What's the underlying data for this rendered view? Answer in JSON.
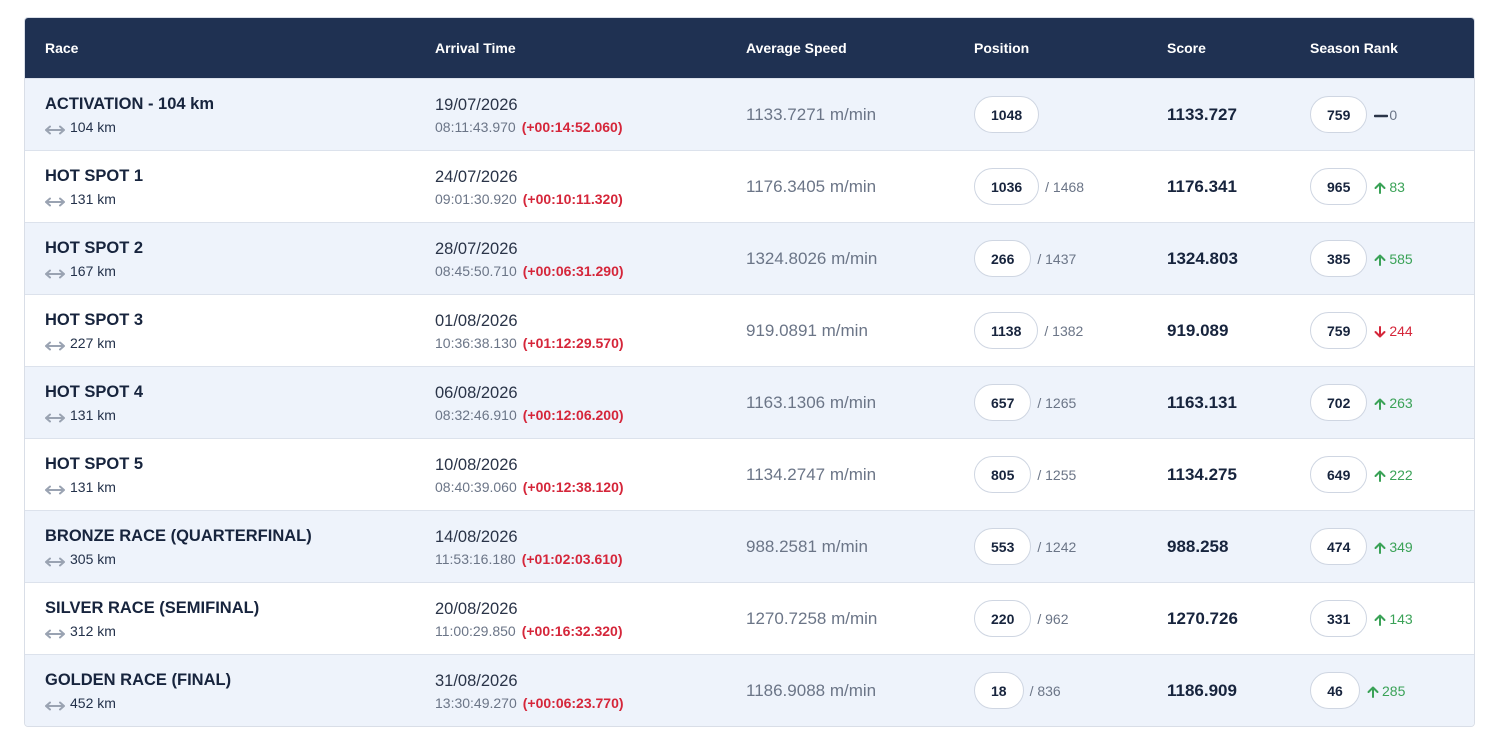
{
  "columns": {
    "race": "Race",
    "arrival": "Arrival Time",
    "speed": "Average Speed",
    "position": "Position",
    "score": "Score",
    "rank": "Season Rank"
  },
  "rows": [
    {
      "name": "ACTIVATION - 104 km",
      "distance": "104 km",
      "date": "19/07/2026",
      "time": "08:11:43.970",
      "delta": "(+00:14:52.060)",
      "speed": "1133.7271 m/min",
      "position": "1048",
      "position_total": "",
      "score": "1133.727",
      "rank": "759",
      "rank_change": "0",
      "rank_dir": "same",
      "icon": "dash-icon"
    },
    {
      "name": "HOT SPOT 1",
      "distance": "131 km",
      "date": "24/07/2026",
      "time": "09:01:30.920",
      "delta": "(+00:10:11.320)",
      "speed": "1176.3405 m/min",
      "position": "1036",
      "position_total": "/ 1468",
      "score": "1176.341",
      "rank": "965",
      "rank_change": "83",
      "rank_dir": "up",
      "icon": "arrow-up-icon"
    },
    {
      "name": "HOT SPOT 2",
      "distance": "167 km",
      "date": "28/07/2026",
      "time": "08:45:50.710",
      "delta": "(+00:06:31.290)",
      "speed": "1324.8026 m/min",
      "position": "266",
      "position_total": "/ 1437",
      "score": "1324.803",
      "rank": "385",
      "rank_change": "585",
      "rank_dir": "up",
      "icon": "arrow-up-icon"
    },
    {
      "name": "HOT SPOT 3",
      "distance": "227 km",
      "date": "01/08/2026",
      "time": "10:36:38.130",
      "delta": "(+01:12:29.570)",
      "speed": "919.0891 m/min",
      "position": "1138",
      "position_total": "/ 1382",
      "score": "919.089",
      "rank": "759",
      "rank_change": "244",
      "rank_dir": "down",
      "icon": "arrow-down-icon"
    },
    {
      "name": "HOT SPOT 4",
      "distance": "131 km",
      "date": "06/08/2026",
      "time": "08:32:46.910",
      "delta": "(+00:12:06.200)",
      "speed": "1163.1306 m/min",
      "position": "657",
      "position_total": "/ 1265",
      "score": "1163.131",
      "rank": "702",
      "rank_change": "263",
      "rank_dir": "up",
      "icon": "arrow-up-icon"
    },
    {
      "name": "HOT SPOT 5",
      "distance": "131 km",
      "date": "10/08/2026",
      "time": "08:40:39.060",
      "delta": "(+00:12:38.120)",
      "speed": "1134.2747 m/min",
      "position": "805",
      "position_total": "/ 1255",
      "score": "1134.275",
      "rank": "649",
      "rank_change": "222",
      "rank_dir": "up",
      "icon": "arrow-up-icon"
    },
    {
      "name": "BRONZE RACE (QUARTERFINAL)",
      "distance": "305 km",
      "date": "14/08/2026",
      "time": "11:53:16.180",
      "delta": "(+01:02:03.610)",
      "speed": "988.2581 m/min",
      "position": "553",
      "position_total": "/ 1242",
      "score": "988.258",
      "rank": "474",
      "rank_change": "349",
      "rank_dir": "up",
      "icon": "arrow-up-icon"
    },
    {
      "name": "SILVER RACE (SEMIFINAL)",
      "distance": "312 km",
      "date": "20/08/2026",
      "time": "11:00:29.850",
      "delta": "(+00:16:32.320)",
      "speed": "1270.7258 m/min",
      "position": "220",
      "position_total": "/ 962",
      "score": "1270.726",
      "rank": "331",
      "rank_change": "143",
      "rank_dir": "up",
      "icon": "arrow-up-icon"
    },
    {
      "name": "GOLDEN RACE (FINAL)",
      "distance": "452 km",
      "date": "31/08/2026",
      "time": "13:30:49.270",
      "delta": "(+00:06:23.770)",
      "speed": "1186.9088 m/min",
      "position": "18",
      "position_total": "/ 836",
      "score": "1186.909",
      "rank": "46",
      "rank_change": "285",
      "rank_dir": "up",
      "icon": "arrow-up-icon"
    }
  ],
  "colors": {
    "header_bg": "#1f3152",
    "row_alt_bg": "#eef3fb",
    "delta_red": "#d5263a",
    "up_green": "#3aa257"
  }
}
